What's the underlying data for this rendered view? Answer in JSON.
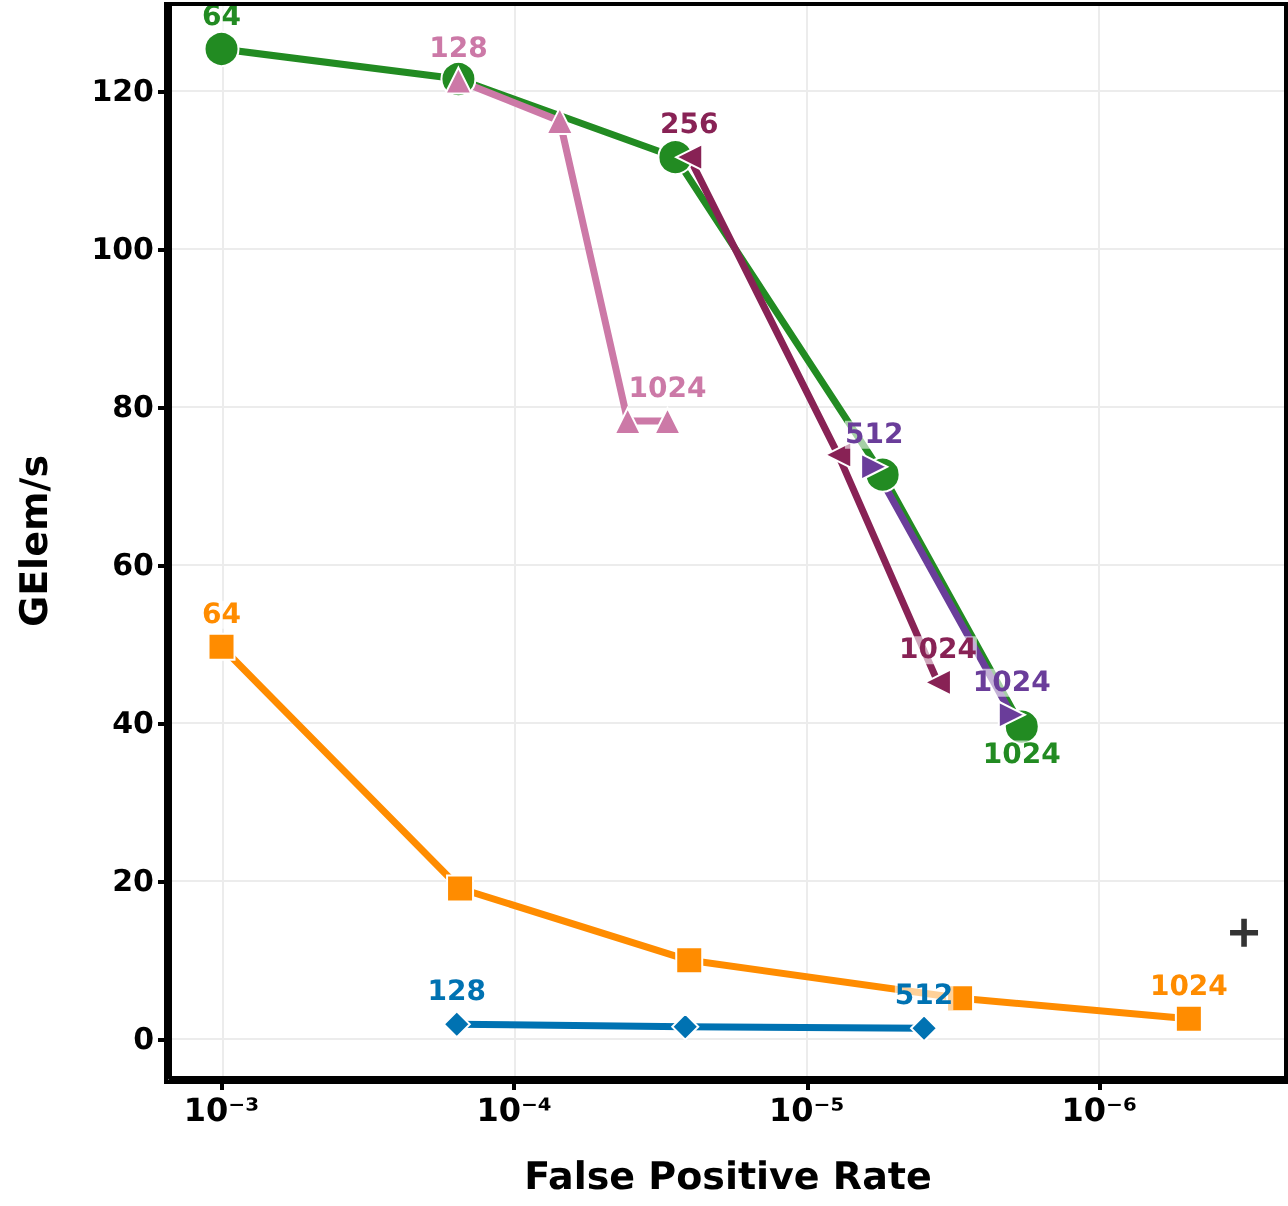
{
  "chart_data": {
    "type": "line",
    "xlabel": "False Positive Rate",
    "ylabel": "GElem/s",
    "log": "x",
    "xlim": [
      0.0015,
      2.3e-07
    ],
    "xticks": [
      {
        "value": 0.001,
        "label": "10⁻³"
      },
      {
        "value": 0.0001,
        "label": "10⁻⁴"
      },
      {
        "value": 1e-05,
        "label": "10⁻⁵"
      },
      {
        "value": 1e-06,
        "label": "10⁻⁶"
      }
    ],
    "ylim": [
      -5,
      131
    ],
    "yticks": [
      0,
      20,
      40,
      60,
      80,
      100,
      120
    ],
    "grid": true,
    "line_style": "solid",
    "series": [
      {
        "color": "#228b22",
        "marker": "circle",
        "x": [
          0.001,
          0.000155,
          2.81e-05,
          5.5e-06,
          1.84e-06
        ],
        "values": [
          125.3,
          121.5,
          111.6,
          71.4,
          39.5
        ]
      },
      {
        "color": "#cc79a7",
        "marker": "triangle",
        "x": [
          0.000155,
          6.98e-05,
          4.09e-05,
          2.99e-05
        ],
        "values": [
          121.3,
          116.2,
          78.2,
          78.2
        ]
      },
      {
        "color": "#882255",
        "marker": "triangle-left",
        "x": [
          2.52e-05,
          7.8e-06,
          3.56e-06
        ],
        "values": [
          111.6,
          73.9,
          45.1
        ]
      },
      {
        "color": "#6a3d9a",
        "marker": "triangle-right",
        "x": [
          5.88e-06,
          1.99e-06
        ],
        "values": [
          72.4,
          41.0
        ]
      },
      {
        "color": "#ff8c00",
        "marker": "square",
        "x": [
          0.001,
          0.000153,
          2.52e-05,
          2.99e-06,
          4.94e-07
        ],
        "values": [
          49.6,
          19.0,
          9.9,
          5.1,
          2.5
        ]
      },
      {
        "color": "#0072b2",
        "marker": "diamond",
        "x": [
          0.000157,
          2.6e-05,
          3.97e-06
        ],
        "values": [
          1.8,
          1.5,
          1.3
        ]
      },
      {
        "type": "scatter",
        "color": "#000000",
        "marker": "cross",
        "x": [
          3.2e-07
        ],
        "values": [
          13.4
        ]
      }
    ],
    "annotations": [
      {
        "text": "64",
        "x": 0.001,
        "y": 125.3
      },
      {
        "text": "1024",
        "x": 1.99e-06,
        "y": 41.0
      },
      {
        "text": "1024",
        "x": 1.84e-06,
        "y": 39.5
      },
      {
        "text": "128",
        "x": 0.000155,
        "y": 121.3
      },
      {
        "text": "1024",
        "x": 2.99e-05,
        "y": 78.2
      },
      {
        "text": "256",
        "x": 2.52e-05,
        "y": 111.6
      },
      {
        "text": "1024",
        "x": 3.56e-06,
        "y": 45.1
      },
      {
        "text": "512",
        "x": 5.88e-06,
        "y": 72.4
      },
      {
        "text": "64",
        "x": 0.001,
        "y": 49.6
      },
      {
        "text": "1024",
        "x": 4.94e-07,
        "y": 2.5
      },
      {
        "text": "128",
        "x": 0.000157,
        "y": 1.8
      },
      {
        "text": "512",
        "x": 3.97e-06,
        "y": 1.3
      }
    ]
  }
}
